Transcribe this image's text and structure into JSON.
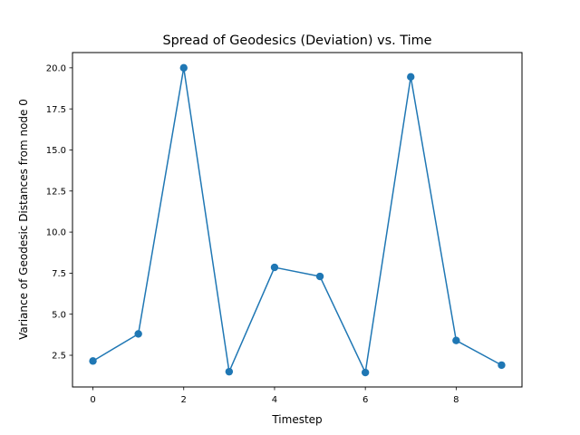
{
  "chart_data": {
    "type": "line",
    "title": "Spread of Geodesics (Deviation) vs. Time",
    "xlabel": "Timestep",
    "ylabel": "Variance of Geodesic Distances from node 0",
    "x": [
      0,
      1,
      2,
      3,
      4,
      5,
      6,
      7,
      8,
      9
    ],
    "series": [
      {
        "values": [
          2.15,
          3.8,
          20.0,
          1.5,
          7.85,
          7.3,
          1.45,
          19.45,
          3.4,
          1.9
        ],
        "color": "#1f77b4",
        "marker": "circle"
      }
    ],
    "xlim": [
      -0.45,
      9.45
    ],
    "ylim": [
      0.57,
      20.93
    ],
    "xticks": [
      0,
      2,
      4,
      6,
      8
    ],
    "xtick_labels": [
      "0",
      "2",
      "4",
      "6",
      "8"
    ],
    "yticks": [
      2.5,
      5.0,
      7.5,
      10.0,
      12.5,
      15.0,
      17.5,
      20.0
    ],
    "ytick_labels": [
      "2.5",
      "5.0",
      "7.5",
      "10.0",
      "12.5",
      "15.0",
      "17.5",
      "20.0"
    ],
    "grid": false,
    "legend": "none"
  }
}
